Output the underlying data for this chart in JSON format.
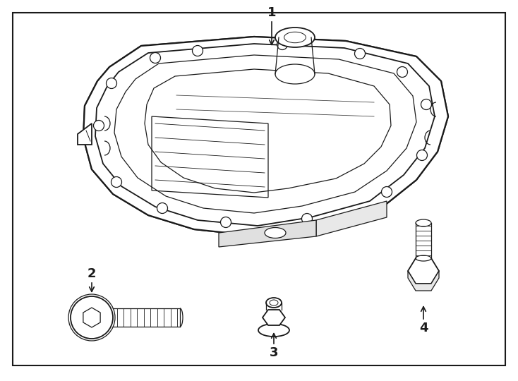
{
  "bg_color": "#ffffff",
  "line_color": "#1a1a1a",
  "label_color": "#1a1a1a",
  "fig_width": 7.34,
  "fig_height": 5.4,
  "dpi": 100
}
